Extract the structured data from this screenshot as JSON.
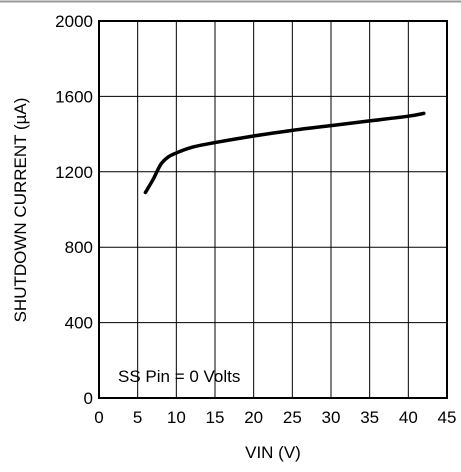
{
  "chart_data": {
    "type": "line",
    "title": "",
    "xlabel": "VIN (V)",
    "ylabel": "SHUTDOWN CURRENT (µA)",
    "xlim": [
      0,
      45
    ],
    "ylim": [
      0,
      2000
    ],
    "x_ticks": [
      0,
      5,
      10,
      15,
      20,
      25,
      30,
      35,
      40,
      45
    ],
    "y_ticks": [
      0,
      400,
      800,
      1200,
      1600,
      2000
    ],
    "grid": true,
    "legend": "none",
    "annotation": "SS Pin = 0 Volts",
    "series": [
      {
        "color": "#000000",
        "x": [
          6,
          7,
          8,
          9,
          10,
          12,
          15,
          20,
          25,
          30,
          35,
          40,
          42
        ],
        "y": [
          1090,
          1160,
          1240,
          1280,
          1300,
          1330,
          1355,
          1390,
          1420,
          1445,
          1470,
          1495,
          1510
        ]
      }
    ]
  }
}
